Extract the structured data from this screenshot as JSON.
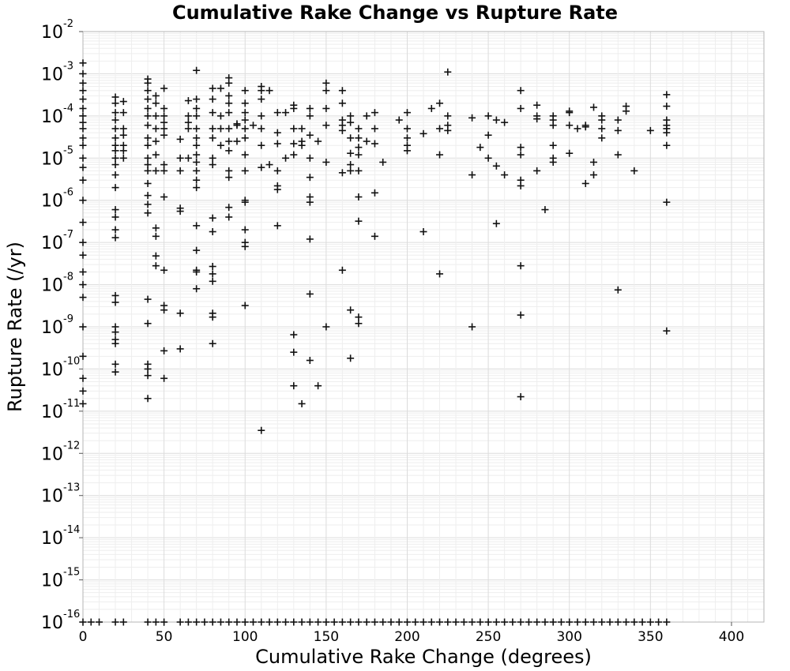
{
  "chart_data": {
    "type": "scatter",
    "title": "Cumulative Rake Change vs Rupture Rate",
    "xlabel": "Cumulative Rake Change (degrees)",
    "ylabel": "Rupture Rate (/yr)",
    "xlim": [
      0,
      420
    ],
    "ylim": [
      1e-16,
      0.01
    ],
    "yscale": "log",
    "xticks": [
      0,
      50,
      100,
      150,
      200,
      250,
      300,
      350,
      400
    ],
    "xtick_labels": [
      "0",
      "50",
      "100",
      "150",
      "200",
      "250",
      "300",
      "350",
      "400"
    ],
    "ytick_exponents": [
      -2,
      -3,
      -4,
      -5,
      -6,
      -7,
      -8,
      -9,
      -10,
      -11,
      -12,
      -13,
      -14,
      -15,
      -16
    ],
    "ytick_base": "10",
    "grid": true,
    "marker": "plus",
    "marker_color": "#111111",
    "points": [
      [
        0,
        0.0018
      ],
      [
        0,
        0.001
      ],
      [
        0,
        0.0006
      ],
      [
        0,
        0.0004
      ],
      [
        0,
        0.00025
      ],
      [
        0,
        0.00015
      ],
      [
        0,
        0.0001
      ],
      [
        0,
        7e-05
      ],
      [
        0,
        5e-05
      ],
      [
        0,
        3e-05
      ],
      [
        0,
        2e-05
      ],
      [
        0,
        1e-05
      ],
      [
        0,
        6e-06
      ],
      [
        0,
        3e-06
      ],
      [
        0,
        1e-06
      ],
      [
        0,
        3e-07
      ],
      [
        0,
        1e-07
      ],
      [
        0,
        5e-08
      ],
      [
        0,
        2e-08
      ],
      [
        0,
        1e-08
      ],
      [
        0,
        5e-09
      ],
      [
        0,
        1e-09
      ],
      [
        0,
        2e-10
      ],
      [
        0,
        6e-11
      ],
      [
        0,
        3e-11
      ],
      [
        0,
        1.5e-11
      ],
      [
        20,
        0.00028
      ],
      [
        20,
        0.0002
      ],
      [
        20,
        0.00012
      ],
      [
        20,
        8e-05
      ],
      [
        20,
        5e-05
      ],
      [
        20,
        3e-05
      ],
      [
        20,
        2e-05
      ],
      [
        20,
        1.5e-05
      ],
      [
        20,
        1e-05
      ],
      [
        20,
        7e-06
      ],
      [
        20,
        4e-06
      ],
      [
        20,
        2e-06
      ],
      [
        20,
        6e-07
      ],
      [
        20,
        4e-07
      ],
      [
        20,
        2e-07
      ],
      [
        20,
        1.3e-07
      ],
      [
        20,
        5.5e-09
      ],
      [
        20,
        3.8e-09
      ],
      [
        20,
        1e-09
      ],
      [
        20,
        7.5e-10
      ],
      [
        20,
        5e-10
      ],
      [
        20,
        4e-10
      ],
      [
        20,
        1.3e-10
      ],
      [
        20,
        8.5e-11
      ],
      [
        25,
        0.00022
      ],
      [
        25,
        0.00012
      ],
      [
        25,
        5e-05
      ],
      [
        25,
        3.5e-05
      ],
      [
        25,
        2e-05
      ],
      [
        25,
        1.5e-05
      ],
      [
        25,
        1e-05
      ],
      [
        40,
        0.00075
      ],
      [
        40,
        0.0006
      ],
      [
        40,
        0.0004
      ],
      [
        40,
        0.00025
      ],
      [
        40,
        0.00015
      ],
      [
        40,
        0.0001
      ],
      [
        40,
        6e-05
      ],
      [
        40,
        3e-05
      ],
      [
        40,
        2e-05
      ],
      [
        40,
        1e-05
      ],
      [
        40,
        7e-06
      ],
      [
        40,
        5e-06
      ],
      [
        40,
        2.5e-06
      ],
      [
        40,
        1.3e-06
      ],
      [
        40,
        8e-07
      ],
      [
        40,
        5e-07
      ],
      [
        40,
        4.5e-09
      ],
      [
        40,
        1.2e-09
      ],
      [
        40,
        1.3e-10
      ],
      [
        40,
        1e-10
      ],
      [
        40,
        7e-11
      ],
      [
        40,
        2e-11
      ],
      [
        45,
        0.0003
      ],
      [
        45,
        0.0002
      ],
      [
        45,
        0.0001
      ],
      [
        45,
        5e-05
      ],
      [
        45,
        2.5e-05
      ],
      [
        45,
        1.2e-05
      ],
      [
        45,
        5e-06
      ],
      [
        45,
        2.2e-07
      ],
      [
        45,
        1.4e-07
      ],
      [
        45,
        4.8e-08
      ],
      [
        45,
        2.8e-08
      ],
      [
        50,
        0.00045
      ],
      [
        50,
        0.00015
      ],
      [
        50,
        0.0001
      ],
      [
        50,
        7e-05
      ],
      [
        50,
        5e-05
      ],
      [
        50,
        3.5e-05
      ],
      [
        50,
        7e-06
      ],
      [
        50,
        5e-06
      ],
      [
        50,
        1.2e-06
      ],
      [
        50,
        2.2e-08
      ],
      [
        50,
        3.2e-09
      ],
      [
        50,
        2.5e-09
      ],
      [
        50,
        2.7e-10
      ],
      [
        50,
        6e-11
      ],
      [
        60,
        2.8e-05
      ],
      [
        60,
        1e-05
      ],
      [
        60,
        5e-06
      ],
      [
        60,
        6.5e-07
      ],
      [
        60,
        5.5e-07
      ],
      [
        60,
        2.1e-09
      ],
      [
        60,
        3e-10
      ],
      [
        65,
        0.00023
      ],
      [
        65,
        0.0001
      ],
      [
        65,
        7e-05
      ],
      [
        65,
        5e-05
      ],
      [
        65,
        1e-05
      ],
      [
        70,
        0.0012
      ],
      [
        70,
        0.00025
      ],
      [
        70,
        0.00015
      ],
      [
        70,
        0.0001
      ],
      [
        70,
        5e-05
      ],
      [
        70,
        3e-05
      ],
      [
        70,
        2e-05
      ],
      [
        70,
        1.2e-05
      ],
      [
        70,
        8e-06
      ],
      [
        70,
        5e-06
      ],
      [
        70,
        3e-06
      ],
      [
        70,
        2e-06
      ],
      [
        70,
        2.5e-07
      ],
      [
        70,
        6.5e-08
      ],
      [
        70,
        2.2e-08
      ],
      [
        70,
        2e-08
      ],
      [
        70,
        8e-09
      ],
      [
        80,
        0.00045
      ],
      [
        80,
        0.00025
      ],
      [
        80,
        0.00012
      ],
      [
        80,
        5e-05
      ],
      [
        80,
        3e-05
      ],
      [
        80,
        1e-05
      ],
      [
        80,
        7e-06
      ],
      [
        80,
        3.8e-07
      ],
      [
        80,
        1.8e-07
      ],
      [
        80,
        2.7e-08
      ],
      [
        80,
        1.8e-08
      ],
      [
        80,
        1.2e-08
      ],
      [
        80,
        2.1e-09
      ],
      [
        80,
        1.7e-09
      ],
      [
        80,
        4e-10
      ],
      [
        85,
        0.00045
      ],
      [
        85,
        0.0001
      ],
      [
        85,
        5e-05
      ],
      [
        85,
        2e-05
      ],
      [
        90,
        0.0008
      ],
      [
        90,
        0.0006
      ],
      [
        90,
        0.0003
      ],
      [
        90,
        0.0002
      ],
      [
        90,
        0.00012
      ],
      [
        90,
        5e-05
      ],
      [
        90,
        2.5e-05
      ],
      [
        90,
        1.5e-05
      ],
      [
        90,
        5e-06
      ],
      [
        90,
        3.5e-06
      ],
      [
        90,
        6.8e-07
      ],
      [
        90,
        4e-07
      ],
      [
        95,
        6e-05
      ],
      [
        95,
        2.5e-05
      ],
      [
        95,
        6.5e-05
      ],
      [
        100,
        0.0004
      ],
      [
        100,
        0.0002
      ],
      [
        100,
        0.00012
      ],
      [
        100,
        8e-05
      ],
      [
        100,
        5e-05
      ],
      [
        100,
        3e-05
      ],
      [
        100,
        1.2e-05
      ],
      [
        100,
        5e-06
      ],
      [
        100,
        1e-06
      ],
      [
        100,
        9e-07
      ],
      [
        100,
        2e-07
      ],
      [
        100,
        1e-07
      ],
      [
        100,
        8e-08
      ],
      [
        100,
        3.2e-09
      ],
      [
        105,
        6e-05
      ],
      [
        110,
        0.0005
      ],
      [
        110,
        0.0004
      ],
      [
        110,
        0.00025
      ],
      [
        110,
        0.0001
      ],
      [
        110,
        5e-05
      ],
      [
        110,
        2e-05
      ],
      [
        110,
        6e-06
      ],
      [
        110,
        3.5e-12
      ],
      [
        115,
        0.0004
      ],
      [
        115,
        7e-06
      ],
      [
        120,
        0.00012
      ],
      [
        120,
        4e-05
      ],
      [
        120,
        2.2e-05
      ],
      [
        120,
        5e-06
      ],
      [
        120,
        2.2e-06
      ],
      [
        120,
        1.8e-06
      ],
      [
        120,
        2.5e-07
      ],
      [
        125,
        0.00012
      ],
      [
        125,
        1e-05
      ],
      [
        130,
        0.00018
      ],
      [
        130,
        0.00015
      ],
      [
        130,
        5e-05
      ],
      [
        130,
        2.2e-05
      ],
      [
        130,
        1.2e-05
      ],
      [
        130,
        6.5e-10
      ],
      [
        130,
        2.5e-10
      ],
      [
        130,
        4e-11
      ],
      [
        135,
        5e-05
      ],
      [
        135,
        2.5e-05
      ],
      [
        135,
        2e-05
      ],
      [
        135,
        1.5e-11
      ],
      [
        140,
        0.00015
      ],
      [
        140,
        0.0001
      ],
      [
        140,
        3.5e-05
      ],
      [
        140,
        1e-05
      ],
      [
        140,
        3.5e-06
      ],
      [
        140,
        1.2e-06
      ],
      [
        140,
        9e-07
      ],
      [
        140,
        1.2e-07
      ],
      [
        140,
        6e-09
      ],
      [
        140,
        1.6e-10
      ],
      [
        145,
        2.5e-05
      ],
      [
        145,
        4e-11
      ],
      [
        150,
        0.0006
      ],
      [
        150,
        0.0004
      ],
      [
        150,
        0.00015
      ],
      [
        150,
        6e-05
      ],
      [
        150,
        8e-06
      ],
      [
        150,
        1e-09
      ],
      [
        160,
        0.0004
      ],
      [
        160,
        0.0002
      ],
      [
        160,
        8e-05
      ],
      [
        160,
        6e-05
      ],
      [
        160,
        4.5e-05
      ],
      [
        160,
        4.5e-06
      ],
      [
        160,
        2.2e-08
      ],
      [
        165,
        0.0001
      ],
      [
        165,
        7e-05
      ],
      [
        165,
        3e-05
      ],
      [
        165,
        1.3e-05
      ],
      [
        165,
        7e-06
      ],
      [
        165,
        5e-06
      ],
      [
        165,
        2.5e-09
      ],
      [
        165,
        1.8e-10
      ],
      [
        170,
        5e-05
      ],
      [
        170,
        3e-05
      ],
      [
        170,
        1.8e-05
      ],
      [
        170,
        1.2e-05
      ],
      [
        170,
        5e-06
      ],
      [
        170,
        1.2e-06
      ],
      [
        170,
        3.2e-07
      ],
      [
        170,
        1.7e-09
      ],
      [
        170,
        1.2e-09
      ],
      [
        175,
        0.0001
      ],
      [
        175,
        2.5e-05
      ],
      [
        180,
        0.00012
      ],
      [
        180,
        5e-05
      ],
      [
        180,
        2.2e-05
      ],
      [
        180,
        1.5e-06
      ],
      [
        180,
        1.4e-07
      ],
      [
        185,
        8e-06
      ],
      [
        195,
        8e-05
      ],
      [
        200,
        0.00012
      ],
      [
        200,
        5e-05
      ],
      [
        200,
        3e-05
      ],
      [
        200,
        2e-05
      ],
      [
        200,
        1.5e-05
      ],
      [
        210,
        3.8e-05
      ],
      [
        210,
        1.8e-07
      ],
      [
        215,
        0.00015
      ],
      [
        220,
        0.0002
      ],
      [
        220,
        5e-05
      ],
      [
        220,
        1.2e-05
      ],
      [
        220,
        1.8e-08
      ],
      [
        225,
        0.0011
      ],
      [
        225,
        0.0001
      ],
      [
        225,
        6e-05
      ],
      [
        225,
        4.5e-05
      ],
      [
        240,
        9e-05
      ],
      [
        240,
        4e-06
      ],
      [
        240,
        1e-09
      ],
      [
        245,
        1.8e-05
      ],
      [
        250,
        0.0001
      ],
      [
        250,
        3.5e-05
      ],
      [
        250,
        1e-05
      ],
      [
        255,
        8e-05
      ],
      [
        255,
        6.5e-06
      ],
      [
        255,
        2.8e-07
      ],
      [
        260,
        7e-05
      ],
      [
        260,
        4e-06
      ],
      [
        270,
        0.0004
      ],
      [
        270,
        0.00015
      ],
      [
        270,
        1.8e-05
      ],
      [
        270,
        1.2e-05
      ],
      [
        270,
        3e-06
      ],
      [
        270,
        2.2e-06
      ],
      [
        270,
        2.8e-08
      ],
      [
        270,
        1.9e-09
      ],
      [
        270,
        2.2e-11
      ],
      [
        280,
        0.00018
      ],
      [
        280,
        0.0001
      ],
      [
        280,
        8.5e-05
      ],
      [
        280,
        5e-06
      ],
      [
        285,
        6e-07
      ],
      [
        290,
        0.0001
      ],
      [
        290,
        8e-05
      ],
      [
        290,
        6e-05
      ],
      [
        290,
        2e-05
      ],
      [
        290,
        1e-05
      ],
      [
        290,
        8e-06
      ],
      [
        300,
        0.00013
      ],
      [
        300,
        0.00012
      ],
      [
        300,
        6e-05
      ],
      [
        300,
        1.3e-05
      ],
      [
        305,
        5e-05
      ],
      [
        310,
        6e-05
      ],
      [
        310,
        5.5e-05
      ],
      [
        310,
        2.5e-06
      ],
      [
        315,
        0.00016
      ],
      [
        315,
        8e-06
      ],
      [
        315,
        4e-06
      ],
      [
        320,
        0.0001
      ],
      [
        320,
        8e-05
      ],
      [
        320,
        5e-05
      ],
      [
        320,
        3e-05
      ],
      [
        330,
        8e-05
      ],
      [
        330,
        4.5e-05
      ],
      [
        330,
        1.2e-05
      ],
      [
        330,
        7.5e-09
      ],
      [
        335,
        0.00017
      ],
      [
        335,
        0.00013
      ],
      [
        340,
        5e-06
      ],
      [
        350,
        4.5e-05
      ],
      [
        360,
        0.00032
      ],
      [
        360,
        0.00017
      ],
      [
        360,
        8e-05
      ],
      [
        360,
        6e-05
      ],
      [
        360,
        5e-05
      ],
      [
        360,
        4e-05
      ],
      [
        360,
        2e-05
      ],
      [
        360,
        9e-07
      ],
      [
        360,
        8e-10
      ],
      [
        0,
        1e-16
      ],
      [
        5,
        1e-16
      ],
      [
        10,
        1e-16
      ],
      [
        20,
        1e-16
      ],
      [
        25,
        1e-16
      ],
      [
        40,
        1e-16
      ],
      [
        45,
        1e-16
      ],
      [
        50,
        1e-16
      ],
      [
        60,
        1e-16
      ],
      [
        65,
        1e-16
      ],
      [
        70,
        1e-16
      ],
      [
        75,
        1e-16
      ],
      [
        80,
        1e-16
      ],
      [
        85,
        1e-16
      ],
      [
        90,
        1e-16
      ],
      [
        95,
        1e-16
      ],
      [
        100,
        1e-16
      ],
      [
        105,
        1e-16
      ],
      [
        110,
        1e-16
      ],
      [
        115,
        1e-16
      ],
      [
        120,
        1e-16
      ],
      [
        125,
        1e-16
      ],
      [
        130,
        1e-16
      ],
      [
        135,
        1e-16
      ],
      [
        140,
        1e-16
      ],
      [
        145,
        1e-16
      ],
      [
        150,
        1e-16
      ],
      [
        155,
        1e-16
      ],
      [
        160,
        1e-16
      ],
      [
        165,
        1e-16
      ],
      [
        170,
        1e-16
      ],
      [
        175,
        1e-16
      ],
      [
        180,
        1e-16
      ],
      [
        185,
        1e-16
      ],
      [
        190,
        1e-16
      ],
      [
        195,
        1e-16
      ],
      [
        200,
        1e-16
      ],
      [
        205,
        1e-16
      ],
      [
        210,
        1e-16
      ],
      [
        215,
        1e-16
      ],
      [
        220,
        1e-16
      ],
      [
        225,
        1e-16
      ],
      [
        230,
        1e-16
      ],
      [
        235,
        1e-16
      ],
      [
        240,
        1e-16
      ],
      [
        245,
        1e-16
      ],
      [
        250,
        1e-16
      ],
      [
        255,
        1e-16
      ],
      [
        260,
        1e-16
      ],
      [
        265,
        1e-16
      ],
      [
        270,
        1e-16
      ],
      [
        275,
        1e-16
      ],
      [
        280,
        1e-16
      ],
      [
        285,
        1e-16
      ],
      [
        290,
        1e-16
      ],
      [
        295,
        1e-16
      ],
      [
        300,
        1e-16
      ],
      [
        305,
        1e-16
      ],
      [
        310,
        1e-16
      ],
      [
        315,
        1e-16
      ],
      [
        320,
        1e-16
      ],
      [
        325,
        1e-16
      ],
      [
        330,
        1e-16
      ],
      [
        335,
        1e-16
      ],
      [
        340,
        1e-16
      ],
      [
        345,
        1e-16
      ],
      [
        350,
        1e-16
      ],
      [
        355,
        1e-16
      ],
      [
        360,
        1e-16
      ]
    ]
  }
}
